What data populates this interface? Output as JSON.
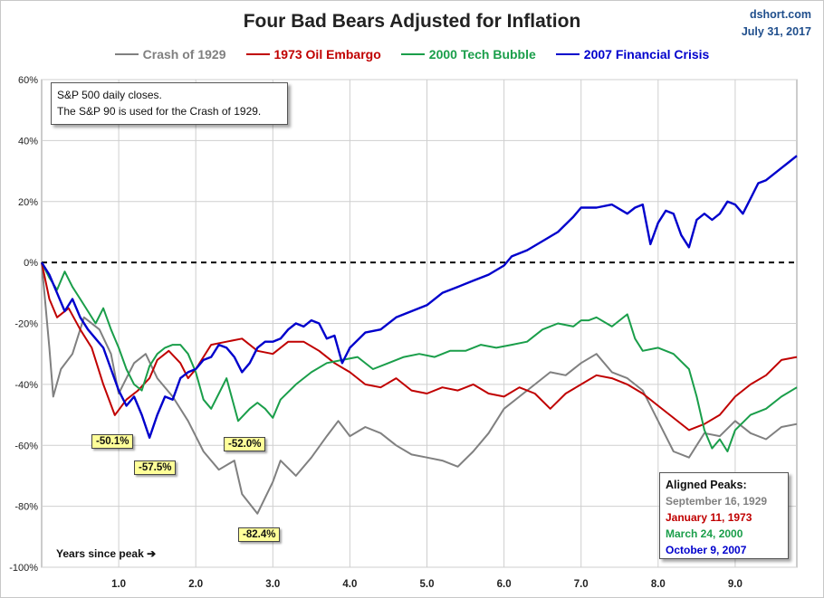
{
  "header": {
    "title": "Four Bad Bears Adjusted for Inflation",
    "source": "dshort.com",
    "date": "July 31, 2017"
  },
  "note": {
    "line1": "S&P 500 daily closes.",
    "line2": "The S&P 90 is used for the Crash of 1929."
  },
  "x_axis_note": "Years since peak ➔",
  "aligned_peaks": {
    "heading": "Aligned Peaks:",
    "items": [
      {
        "label": "September 16, 1929",
        "color": "#808080"
      },
      {
        "label": "January 11, 1973",
        "color": "#c00000"
      },
      {
        "label": "March 24, 2000",
        "color": "#1a9e4a"
      },
      {
        "label": "October 9, 2007",
        "color": "#0000cc"
      }
    ]
  },
  "troughs": [
    {
      "label": "-50.1%",
      "series": "1973 Oil Embargo"
    },
    {
      "label": "-57.5%",
      "series": "2007 Financial Crisis"
    },
    {
      "label": "-52.0%",
      "series": "2000 Tech Bubble"
    },
    {
      "label": "-82.4%",
      "series": "Crash of 1929"
    }
  ],
  "chart_data": {
    "type": "line",
    "title": "Four Bad Bears Adjusted for Inflation",
    "xlabel": "Years since peak ➔",
    "ylabel": "",
    "xlim": [
      0,
      9.8
    ],
    "ylim": [
      -100,
      60
    ],
    "y_ticks": [
      "60%",
      "40%",
      "20%",
      "0%",
      "-20%",
      "-40%",
      "-60%",
      "-80%",
      "-100%"
    ],
    "y_tick_values": [
      60,
      40,
      20,
      0,
      -20,
      -40,
      -60,
      -80,
      -100
    ],
    "x_ticks": [
      "1.0",
      "2.0",
      "3.0",
      "4.0",
      "5.0",
      "6.0",
      "7.0",
      "8.0",
      "9.0"
    ],
    "x_tick_values": [
      1,
      2,
      3,
      4,
      5,
      6,
      7,
      8,
      9
    ],
    "zero_line": "dashed",
    "grid": true,
    "legend_position": "top",
    "series": [
      {
        "name": "Crash of 1929",
        "color": "#808080",
        "points": [
          [
            0,
            0
          ],
          [
            0.1,
            -28
          ],
          [
            0.15,
            -44
          ],
          [
            0.25,
            -35
          ],
          [
            0.4,
            -30
          ],
          [
            0.55,
            -18
          ],
          [
            0.75,
            -22
          ],
          [
            0.9,
            -30
          ],
          [
            1.0,
            -43
          ],
          [
            1.1,
            -38
          ],
          [
            1.2,
            -33
          ],
          [
            1.35,
            -30
          ],
          [
            1.5,
            -38
          ],
          [
            1.7,
            -44
          ],
          [
            1.9,
            -52
          ],
          [
            2.1,
            -62
          ],
          [
            2.3,
            -68
          ],
          [
            2.5,
            -65
          ],
          [
            2.6,
            -76
          ],
          [
            2.8,
            -82.4
          ],
          [
            3.0,
            -72
          ],
          [
            3.1,
            -65
          ],
          [
            3.3,
            -70
          ],
          [
            3.5,
            -64
          ],
          [
            3.7,
            -57
          ],
          [
            3.85,
            -52
          ],
          [
            4.0,
            -57
          ],
          [
            4.2,
            -54
          ],
          [
            4.4,
            -56
          ],
          [
            4.6,
            -60
          ],
          [
            4.8,
            -63
          ],
          [
            5.0,
            -64
          ],
          [
            5.2,
            -65
          ],
          [
            5.4,
            -67
          ],
          [
            5.6,
            -62
          ],
          [
            5.8,
            -56
          ],
          [
            6.0,
            -48
          ],
          [
            6.2,
            -44
          ],
          [
            6.4,
            -40
          ],
          [
            6.6,
            -36
          ],
          [
            6.8,
            -37
          ],
          [
            7.0,
            -33
          ],
          [
            7.2,
            -30
          ],
          [
            7.4,
            -36
          ],
          [
            7.6,
            -38
          ],
          [
            7.8,
            -42
          ],
          [
            8.0,
            -52
          ],
          [
            8.2,
            -62
          ],
          [
            8.4,
            -64
          ],
          [
            8.6,
            -56
          ],
          [
            8.8,
            -57
          ],
          [
            9.0,
            -52
          ],
          [
            9.2,
            -56
          ],
          [
            9.4,
            -58
          ],
          [
            9.6,
            -54
          ],
          [
            9.8,
            -53
          ]
        ]
      },
      {
        "name": "1973 Oil Embargo",
        "color": "#c00000",
        "points": [
          [
            0,
            0
          ],
          [
            0.1,
            -12
          ],
          [
            0.2,
            -18
          ],
          [
            0.35,
            -15
          ],
          [
            0.5,
            -22
          ],
          [
            0.65,
            -28
          ],
          [
            0.8,
            -40
          ],
          [
            0.95,
            -50.1
          ],
          [
            1.1,
            -45
          ],
          [
            1.25,
            -42
          ],
          [
            1.4,
            -38
          ],
          [
            1.5,
            -32
          ],
          [
            1.65,
            -29
          ],
          [
            1.8,
            -33
          ],
          [
            1.9,
            -38
          ],
          [
            2.0,
            -35
          ],
          [
            2.2,
            -27
          ],
          [
            2.4,
            -26
          ],
          [
            2.6,
            -25
          ],
          [
            2.8,
            -29
          ],
          [
            3.0,
            -30
          ],
          [
            3.2,
            -26
          ],
          [
            3.4,
            -26
          ],
          [
            3.6,
            -29
          ],
          [
            3.8,
            -33
          ],
          [
            4.0,
            -36
          ],
          [
            4.2,
            -40
          ],
          [
            4.4,
            -41
          ],
          [
            4.6,
            -38
          ],
          [
            4.8,
            -42
          ],
          [
            5.0,
            -43
          ],
          [
            5.2,
            -41
          ],
          [
            5.4,
            -42
          ],
          [
            5.6,
            -40
          ],
          [
            5.8,
            -43
          ],
          [
            6.0,
            -44
          ],
          [
            6.2,
            -41
          ],
          [
            6.4,
            -43
          ],
          [
            6.6,
            -48
          ],
          [
            6.8,
            -43
          ],
          [
            7.0,
            -40
          ],
          [
            7.2,
            -37
          ],
          [
            7.4,
            -38
          ],
          [
            7.6,
            -40
          ],
          [
            7.8,
            -43
          ],
          [
            8.0,
            -47
          ],
          [
            8.2,
            -51
          ],
          [
            8.4,
            -55
          ],
          [
            8.6,
            -53
          ],
          [
            8.8,
            -50
          ],
          [
            9.0,
            -44
          ],
          [
            9.2,
            -40
          ],
          [
            9.4,
            -37
          ],
          [
            9.6,
            -32
          ],
          [
            9.8,
            -31
          ]
        ]
      },
      {
        "name": "2000 Tech Bubble",
        "color": "#1a9e4a",
        "points": [
          [
            0,
            0
          ],
          [
            0.1,
            -5
          ],
          [
            0.2,
            -9
          ],
          [
            0.3,
            -3
          ],
          [
            0.4,
            -8
          ],
          [
            0.5,
            -12
          ],
          [
            0.6,
            -16
          ],
          [
            0.7,
            -20
          ],
          [
            0.8,
            -15
          ],
          [
            0.9,
            -22
          ],
          [
            1.0,
            -28
          ],
          [
            1.1,
            -35
          ],
          [
            1.2,
            -40
          ],
          [
            1.3,
            -42
          ],
          [
            1.4,
            -34
          ],
          [
            1.5,
            -30
          ],
          [
            1.6,
            -28
          ],
          [
            1.7,
            -27
          ],
          [
            1.8,
            -27
          ],
          [
            1.9,
            -30
          ],
          [
            2.0,
            -36
          ],
          [
            2.1,
            -45
          ],
          [
            2.2,
            -48
          ],
          [
            2.3,
            -43
          ],
          [
            2.4,
            -38
          ],
          [
            2.55,
            -52.0
          ],
          [
            2.7,
            -48
          ],
          [
            2.8,
            -46
          ],
          [
            2.9,
            -48
          ],
          [
            3.0,
            -51
          ],
          [
            3.1,
            -45
          ],
          [
            3.3,
            -40
          ],
          [
            3.5,
            -36
          ],
          [
            3.7,
            -33
          ],
          [
            3.9,
            -32
          ],
          [
            4.1,
            -31
          ],
          [
            4.3,
            -35
          ],
          [
            4.5,
            -33
          ],
          [
            4.7,
            -31
          ],
          [
            4.9,
            -30
          ],
          [
            5.1,
            -31
          ],
          [
            5.3,
            -29
          ],
          [
            5.5,
            -29
          ],
          [
            5.7,
            -27
          ],
          [
            5.9,
            -28
          ],
          [
            6.1,
            -27
          ],
          [
            6.3,
            -26
          ],
          [
            6.5,
            -22
          ],
          [
            6.7,
            -20
          ],
          [
            6.9,
            -21
          ],
          [
            7.0,
            -19
          ],
          [
            7.1,
            -19
          ],
          [
            7.2,
            -18
          ],
          [
            7.4,
            -21
          ],
          [
            7.5,
            -19
          ],
          [
            7.6,
            -17
          ],
          [
            7.7,
            -25
          ],
          [
            7.8,
            -29
          ],
          [
            8.0,
            -28
          ],
          [
            8.2,
            -30
          ],
          [
            8.4,
            -35
          ],
          [
            8.5,
            -44
          ],
          [
            8.6,
            -55
          ],
          [
            8.7,
            -61
          ],
          [
            8.8,
            -58
          ],
          [
            8.9,
            -62
          ],
          [
            9.0,
            -55
          ],
          [
            9.2,
            -50
          ],
          [
            9.4,
            -48
          ],
          [
            9.6,
            -44
          ],
          [
            9.8,
            -41
          ]
        ]
      },
      {
        "name": "2007 Financial Crisis",
        "color": "#0000cc",
        "points": [
          [
            0,
            0
          ],
          [
            0.1,
            -4
          ],
          [
            0.2,
            -10
          ],
          [
            0.3,
            -16
          ],
          [
            0.4,
            -12
          ],
          [
            0.5,
            -18
          ],
          [
            0.6,
            -22
          ],
          [
            0.7,
            -25
          ],
          [
            0.8,
            -28
          ],
          [
            0.9,
            -35
          ],
          [
            1.0,
            -42
          ],
          [
            1.1,
            -47
          ],
          [
            1.2,
            -44
          ],
          [
            1.3,
            -50
          ],
          [
            1.4,
            -57.5
          ],
          [
            1.5,
            -50
          ],
          [
            1.6,
            -44
          ],
          [
            1.7,
            -45
          ],
          [
            1.8,
            -38
          ],
          [
            1.9,
            -36
          ],
          [
            2.0,
            -35
          ],
          [
            2.1,
            -32
          ],
          [
            2.2,
            -31
          ],
          [
            2.3,
            -27
          ],
          [
            2.4,
            -28
          ],
          [
            2.5,
            -31
          ],
          [
            2.6,
            -36
          ],
          [
            2.7,
            -33
          ],
          [
            2.8,
            -28
          ],
          [
            2.9,
            -26
          ],
          [
            3.0,
            -26
          ],
          [
            3.1,
            -25
          ],
          [
            3.2,
            -22
          ],
          [
            3.3,
            -20
          ],
          [
            3.4,
            -21
          ],
          [
            3.5,
            -19
          ],
          [
            3.6,
            -20
          ],
          [
            3.7,
            -25
          ],
          [
            3.8,
            -24
          ],
          [
            3.9,
            -33
          ],
          [
            4.0,
            -28
          ],
          [
            4.2,
            -23
          ],
          [
            4.4,
            -22
          ],
          [
            4.6,
            -18
          ],
          [
            4.8,
            -16
          ],
          [
            5.0,
            -14
          ],
          [
            5.2,
            -10
          ],
          [
            5.4,
            -8
          ],
          [
            5.6,
            -6
          ],
          [
            5.8,
            -4
          ],
          [
            6.0,
            -1
          ],
          [
            6.1,
            2
          ],
          [
            6.3,
            4
          ],
          [
            6.5,
            7
          ],
          [
            6.7,
            10
          ],
          [
            6.9,
            15
          ],
          [
            7.0,
            18
          ],
          [
            7.2,
            18
          ],
          [
            7.4,
            19
          ],
          [
            7.6,
            16
          ],
          [
            7.7,
            18
          ],
          [
            7.8,
            19
          ],
          [
            7.9,
            6
          ],
          [
            8.0,
            13
          ],
          [
            8.1,
            17
          ],
          [
            8.2,
            16
          ],
          [
            8.3,
            9
          ],
          [
            8.4,
            5
          ],
          [
            8.5,
            14
          ],
          [
            8.6,
            16
          ],
          [
            8.7,
            14
          ],
          [
            8.8,
            16
          ],
          [
            8.9,
            20
          ],
          [
            9.0,
            19
          ],
          [
            9.1,
            16
          ],
          [
            9.2,
            21
          ],
          [
            9.3,
            26
          ],
          [
            9.4,
            27
          ],
          [
            9.5,
            29
          ],
          [
            9.6,
            31
          ],
          [
            9.7,
            33
          ],
          [
            9.8,
            35
          ]
        ]
      }
    ]
  }
}
